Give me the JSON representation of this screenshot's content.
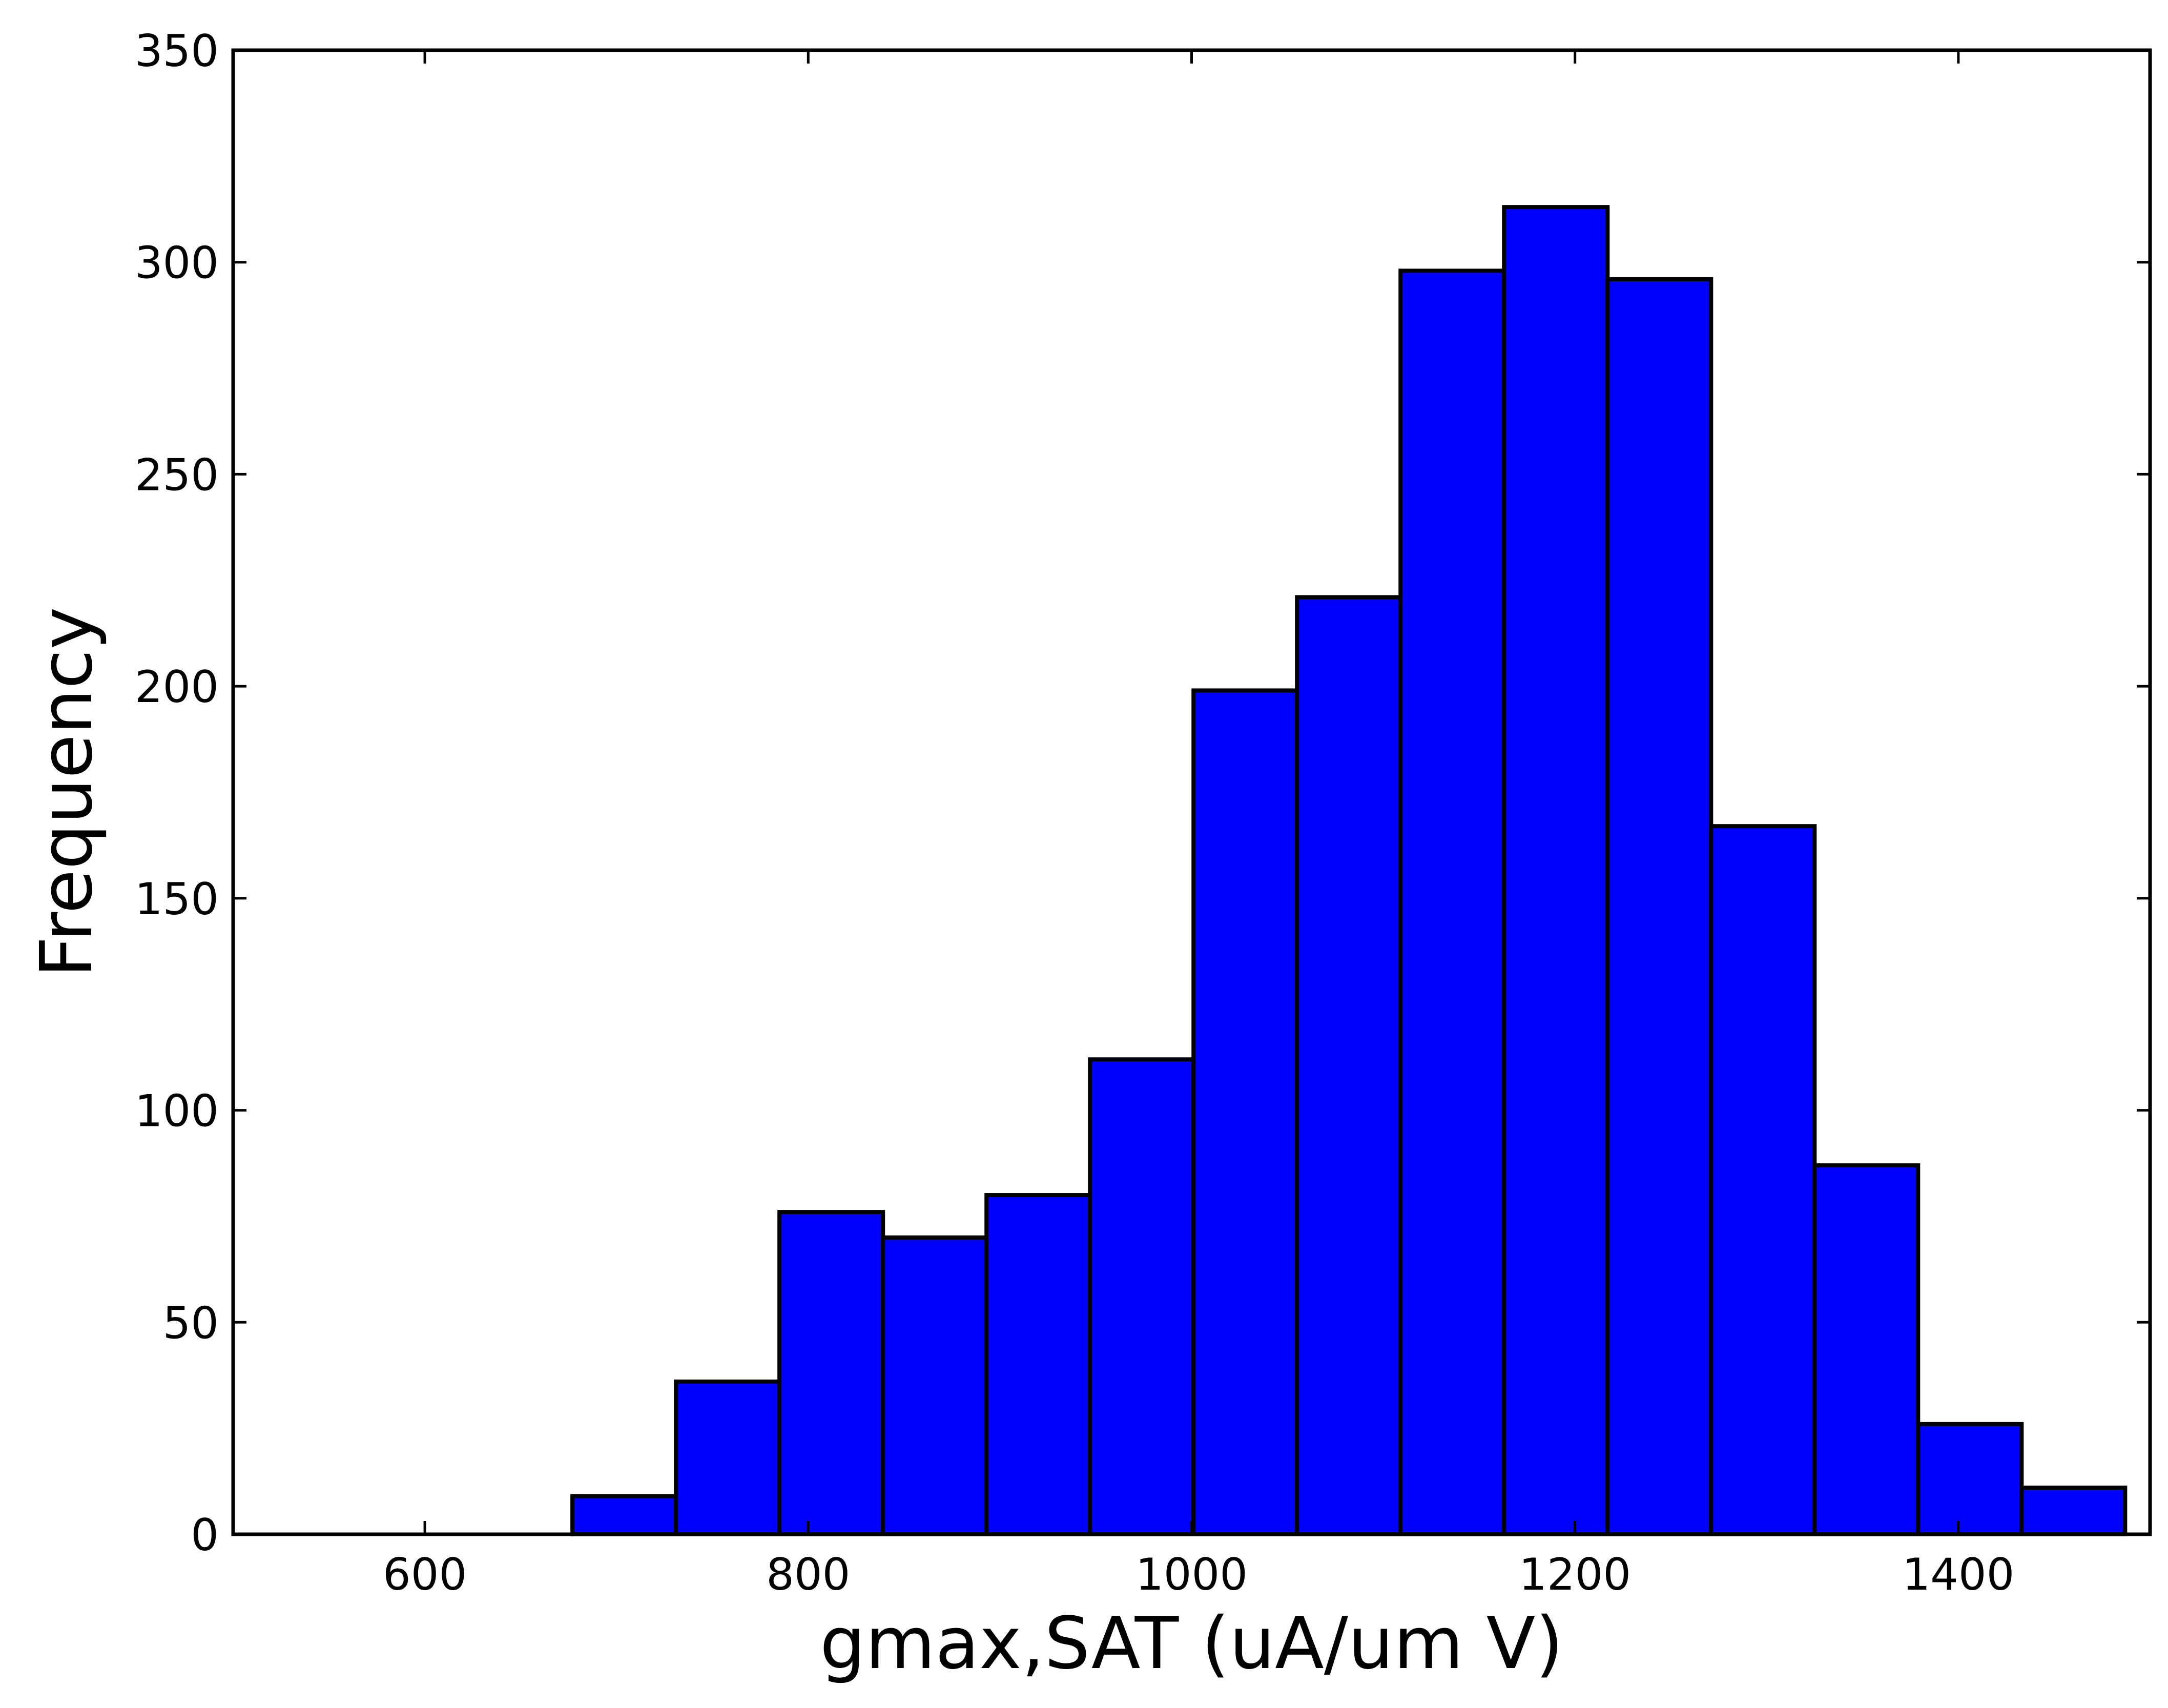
{
  "chart_data": {
    "type": "bar",
    "subtype": "histogram",
    "title": "",
    "xlabel": "gmax,SAT (uA/um V)",
    "ylabel": "Frequency",
    "xlim": [
      500,
      1500
    ],
    "ylim": [
      0,
      350
    ],
    "xticks": [
      600,
      800,
      1000,
      1200,
      1400
    ],
    "yticks": [
      0,
      50,
      100,
      150,
      200,
      250,
      300,
      350
    ],
    "bar_color": "#0000ff",
    "edge_color": "#000000",
    "grid": false,
    "legend": "none",
    "bins": [
      {
        "x0": 677,
        "x1": 731,
        "count": 9
      },
      {
        "x0": 731,
        "x1": 785,
        "count": 36
      },
      {
        "x0": 785,
        "x1": 839,
        "count": 76
      },
      {
        "x0": 839,
        "x1": 893,
        "count": 70
      },
      {
        "x0": 893,
        "x1": 947,
        "count": 80
      },
      {
        "x0": 947,
        "x1": 1001,
        "count": 112
      },
      {
        "x0": 1001,
        "x1": 1055,
        "count": 199
      },
      {
        "x0": 1055,
        "x1": 1109,
        "count": 221
      },
      {
        "x0": 1109,
        "x1": 1163,
        "count": 298
      },
      {
        "x0": 1163,
        "x1": 1217,
        "count": 313
      },
      {
        "x0": 1217,
        "x1": 1271,
        "count": 296
      },
      {
        "x0": 1271,
        "x1": 1325,
        "count": 167
      },
      {
        "x0": 1325,
        "x1": 1379,
        "count": 87
      },
      {
        "x0": 1379,
        "x1": 1433,
        "count": 26
      },
      {
        "x0": 1433,
        "x1": 1487,
        "count": 11
      }
    ]
  }
}
